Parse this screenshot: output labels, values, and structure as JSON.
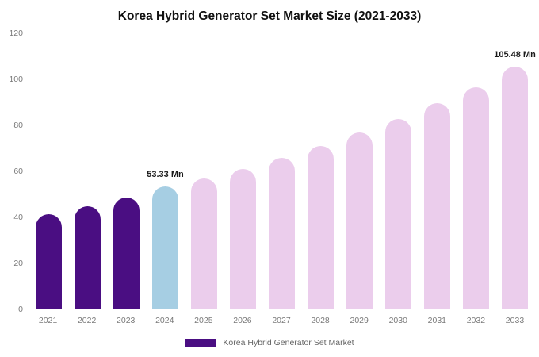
{
  "title": "Korea Hybrid Generator Set Market Size (2021-2033)",
  "legend": {
    "label": "Korea Hybrid Generator Set Market",
    "swatch_color": "#4a0e82"
  },
  "chart_data": {
    "type": "bar",
    "title": "Korea Hybrid Generator Set Market Size (2021-2033)",
    "xlabel": "",
    "ylabel": "",
    "unit": "Mn",
    "ylim": [
      0,
      120
    ],
    "yticks": [
      0,
      20,
      40,
      60,
      80,
      100,
      120
    ],
    "grid": false,
    "legend_position": "bottom",
    "legend_entries": [
      "Korea Hybrid Generator Set Market"
    ],
    "categories": [
      "2021",
      "2022",
      "2023",
      "2024",
      "2025",
      "2026",
      "2027",
      "2028",
      "2029",
      "2030",
      "2031",
      "2032",
      "2033"
    ],
    "values": [
      41.5,
      44.9,
      48.5,
      53.33,
      56.8,
      61.2,
      66.0,
      71.2,
      76.8,
      82.9,
      89.5,
      96.5,
      105.48
    ],
    "colors": [
      "#4a0e82",
      "#4a0e82",
      "#4a0e82",
      "#a6cee3",
      "#ebcdec",
      "#ebcdec",
      "#ebcdec",
      "#ebcdec",
      "#ebcdec",
      "#ebcdec",
      "#ebcdec",
      "#ebcdec",
      "#ebcdec"
    ],
    "bar_labels": [
      "",
      "",
      "",
      "53.33 Mn",
      "",
      "",
      "",
      "",
      "",
      "",
      "",
      "",
      "105.48 Mn"
    ],
    "annotations": [
      "53.33 Mn above 2024 bar",
      "105.48 Mn above 2033 bar"
    ]
  }
}
